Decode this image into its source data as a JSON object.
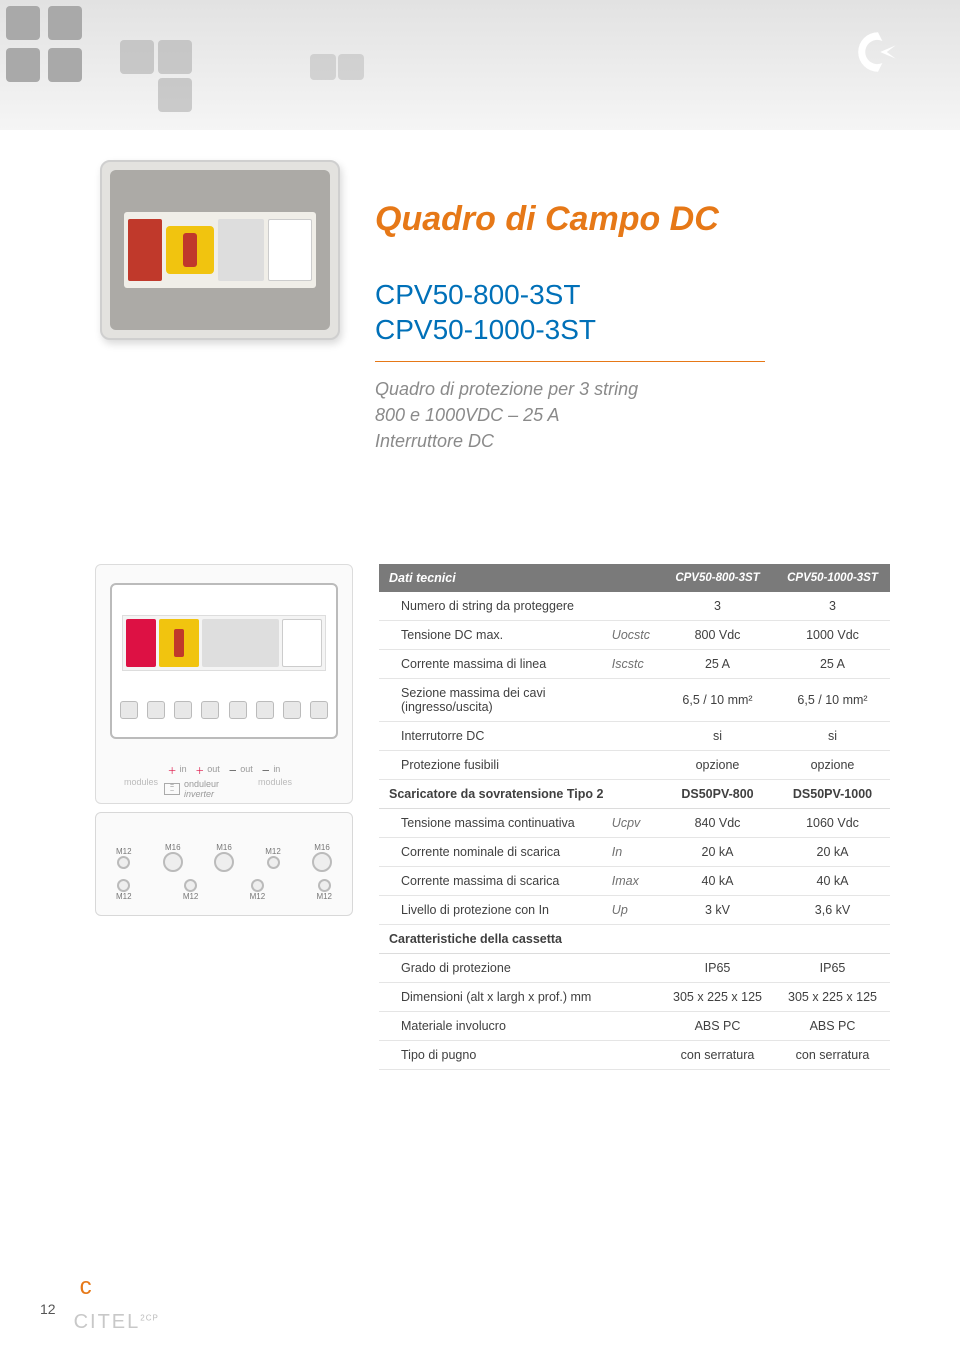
{
  "page_title": "Quadro di Campo DC",
  "model_1": "CPV50-800-3ST",
  "model_2": "CPV50-1000-3ST",
  "subtitle_line1": "Quadro di protezione per 3 string",
  "subtitle_line2": "800 e 1000VDC – 25 A",
  "subtitle_line3": "Interruttore DC",
  "schematic": {
    "in": "in",
    "out": "out",
    "modules": "modules",
    "onduleur": "onduleur",
    "inverter": "inverter"
  },
  "glands": {
    "m12": "M12",
    "m16": "M16"
  },
  "table": {
    "header": {
      "title": "Dati tecnici",
      "col1": "CPV50-800-3ST",
      "col2": "CPV50-1000-3ST"
    },
    "rows": [
      {
        "label": "Numero di string da proteggere",
        "sym": "",
        "v1": "3",
        "v2": "3",
        "indent": true
      },
      {
        "label": "Tensione DC max.",
        "sym": "Uocstc",
        "v1": "800 Vdc",
        "v2": "1000 Vdc",
        "indent": true
      },
      {
        "label": "Corrente massima di linea",
        "sym": "Iscstc",
        "v1": "25 A",
        "v2": "25 A",
        "indent": true
      },
      {
        "label": "Sezione massima dei cavi (ingresso/uscita)",
        "sym": "",
        "v1": "6,5 / 10 mm²",
        "v2": "6,5 / 10 mm²",
        "indent": true
      },
      {
        "label": "Interrutorre DC",
        "sym": "",
        "v1": "si",
        "v2": "si",
        "indent": true
      },
      {
        "label": "Protezione fusibili",
        "sym": "",
        "v1": "opzione",
        "v2": "opzione",
        "indent": true
      },
      {
        "label": "Scaricatore da sovratensione Tipo 2",
        "sym": "",
        "v1": "DS50PV-800",
        "v2": "DS50PV-1000",
        "section": true
      },
      {
        "label": "Tensione massima continuativa",
        "sym": "Ucpv",
        "v1": "840 Vdc",
        "v2": "1060 Vdc",
        "indent": true
      },
      {
        "label": "Corrente nominale di scarica",
        "sym": "In",
        "v1": "20 kA",
        "v2": "20 kA",
        "indent": true
      },
      {
        "label": "Corrente massima di scarica",
        "sym": "Imax",
        "v1": "40 kA",
        "v2": "40 kA",
        "indent": true
      },
      {
        "label": "Livello di protezione con In",
        "sym": "Up",
        "v1": "3 kV",
        "v2": "3,6 kV",
        "indent": true
      },
      {
        "label": "Caratteristiche della cassetta",
        "sym": "",
        "v1": "",
        "v2": "",
        "section": true
      },
      {
        "label": "Grado di protezione",
        "sym": "",
        "v1": "IP65",
        "v2": "IP65",
        "indent": true
      },
      {
        "label": "Dimensioni (alt x largh x prof.) mm",
        "sym": "",
        "v1": "305 x 225 x 125",
        "v2": "305 x 225 x 125",
        "indent": true
      },
      {
        "label": "Materiale involucro",
        "sym": "",
        "v1": "ABS PC",
        "v2": "ABS PC",
        "indent": true
      },
      {
        "label": "Tipo di pugno",
        "sym": "",
        "v1": "con serratura",
        "v2": "con serratura",
        "indent": true
      }
    ]
  },
  "footer": {
    "page": "12",
    "brand": "CITEL",
    "sup": "2CP"
  },
  "colors": {
    "accent_orange": "#e67817",
    "accent_blue": "#0070b8",
    "table_header_bg": "#7a7a7a",
    "text_grey": "#8a8a8a"
  }
}
